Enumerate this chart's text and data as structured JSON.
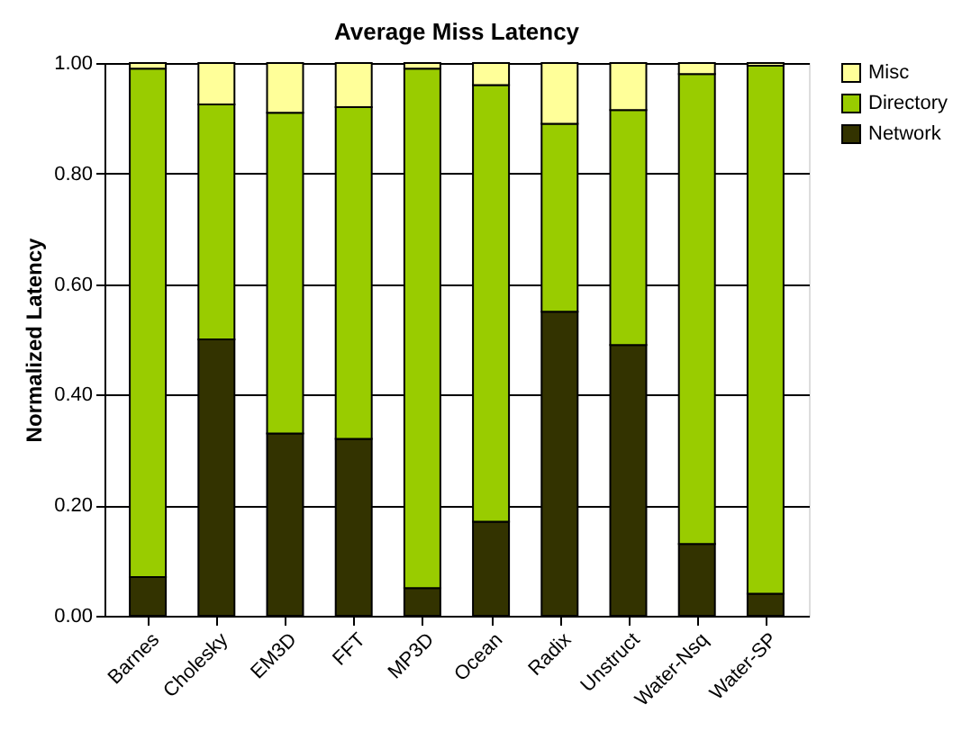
{
  "chart_data": {
    "type": "bar",
    "title": "Average Miss Latency",
    "ylabel": "Normalized Latency",
    "stacked": true,
    "categories": [
      "Barnes",
      "Cholesky",
      "EM3D",
      "FFT",
      "MP3D",
      "Ocean",
      "Radix",
      "Unstruct",
      "Water-Nsq",
      "Water-SP"
    ],
    "series": [
      {
        "name": "Network",
        "color": "#333300",
        "values": [
          0.07,
          0.5,
          0.33,
          0.32,
          0.05,
          0.17,
          0.55,
          0.49,
          0.13,
          0.04
        ]
      },
      {
        "name": "Directory",
        "color": "#99cc00",
        "values": [
          0.92,
          0.425,
          0.58,
          0.6,
          0.94,
          0.79,
          0.34,
          0.425,
          0.85,
          0.955
        ]
      },
      {
        "name": "Misc",
        "color": "#ffff99",
        "values": [
          0.01,
          0.075,
          0.09,
          0.08,
          0.01,
          0.04,
          0.11,
          0.085,
          0.02,
          0.005
        ]
      }
    ],
    "ylim": [
      0,
      1
    ],
    "yticks": [
      {
        "value": 0,
        "label": "0.00"
      },
      {
        "value": 0.2,
        "label": "0.20"
      },
      {
        "value": 0.4,
        "label": "0.40"
      },
      {
        "value": 0.6,
        "label": "0.60"
      },
      {
        "value": 0.8,
        "label": "0.80"
      },
      {
        "value": 1,
        "label": "1.00"
      }
    ],
    "grid": "y",
    "legend": "right"
  }
}
